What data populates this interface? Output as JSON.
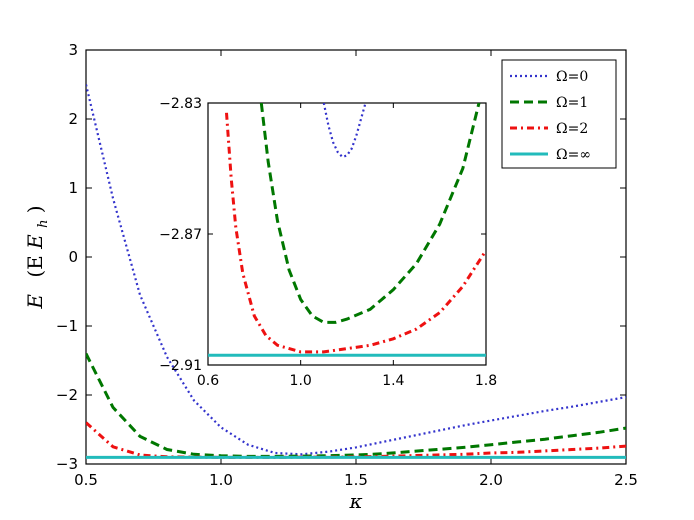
{
  "chart_data": {
    "type": "line",
    "main": {
      "xlabel": "κ",
      "ylabel_main": "E",
      "ylabel_unit": "(E",
      "ylabel_sub": "h",
      "ylabel_close": ")",
      "xlim": [
        0.5,
        2.5
      ],
      "ylim": [
        -3.0,
        3.0
      ],
      "xticks": [
        0.5,
        1.0,
        1.5,
        2.0,
        2.5
      ],
      "xtick_labels": [
        "0.5",
        "1.0",
        "1.5",
        "2.0",
        "2.5"
      ],
      "yticks": [
        -3,
        -2,
        -1,
        0,
        1,
        2,
        3
      ],
      "ytick_labels": [
        "−3",
        "−2",
        "−1",
        "0",
        "1",
        "2",
        "3"
      ],
      "x": [
        0.5,
        0.6,
        0.7,
        0.8,
        0.9,
        1.0,
        1.1,
        1.2,
        1.3,
        1.4,
        1.5,
        1.6,
        1.7,
        1.8,
        1.9,
        2.0,
        2.1,
        2.2,
        2.3,
        2.4,
        2.5
      ],
      "series": [
        {
          "name": "Ω=0",
          "color": "#3333cc",
          "style": "dotted",
          "values": [
            2.5,
            0.85,
            -0.55,
            -1.45,
            -2.08,
            -2.47,
            -2.72,
            -2.84,
            -2.86,
            -2.82,
            -2.76,
            -2.68,
            -2.6,
            -2.52,
            -2.44,
            -2.37,
            -2.3,
            -2.23,
            -2.17,
            -2.1,
            -2.03
          ]
        },
        {
          "name": "Ω=1",
          "color": "#007700",
          "style": "dashed",
          "values": [
            -1.4,
            -2.18,
            -2.6,
            -2.79,
            -2.86,
            -2.88,
            -2.89,
            -2.89,
            -2.885,
            -2.88,
            -2.87,
            -2.85,
            -2.82,
            -2.79,
            -2.76,
            -2.72,
            -2.68,
            -2.64,
            -2.59,
            -2.54,
            -2.48
          ]
        },
        {
          "name": "Ω=2",
          "color": "#ee1111",
          "style": "dashdot",
          "values": [
            -2.4,
            -2.75,
            -2.87,
            -2.895,
            -2.9,
            -2.905,
            -2.905,
            -2.905,
            -2.9,
            -2.9,
            -2.895,
            -2.89,
            -2.88,
            -2.87,
            -2.86,
            -2.84,
            -2.83,
            -2.81,
            -2.79,
            -2.77,
            -2.74
          ]
        },
        {
          "name": "Ω=∞",
          "color": "#22bbbb",
          "style": "solid",
          "values": [
            -2.905,
            -2.905,
            -2.905,
            -2.905,
            -2.905,
            -2.905,
            -2.905,
            -2.905,
            -2.905,
            -2.905,
            -2.905,
            -2.905,
            -2.905,
            -2.905,
            -2.905,
            -2.905,
            -2.905,
            -2.905,
            -2.905,
            -2.905,
            -2.905
          ]
        }
      ]
    },
    "inset": {
      "xlim": [
        0.6,
        1.8
      ],
      "ylim": [
        -2.91,
        -2.83
      ],
      "xticks": [
        0.6,
        1.0,
        1.4,
        1.8
      ],
      "xtick_labels": [
        "0.6",
        "1.0",
        "1.4",
        "1.8"
      ],
      "yticks": [
        -2.91,
        -2.87,
        -2.83
      ],
      "ytick_labels": [
        "−2.91",
        "−2.87",
        "−2.83"
      ],
      "series": [
        {
          "name": "Ω=0",
          "color": "#3333cc",
          "style": "dotted",
          "x": [
            1.1,
            1.12,
            1.14,
            1.16,
            1.18,
            1.2,
            1.22,
            1.24,
            1.26,
            1.28
          ],
          "values": [
            -2.83,
            -2.837,
            -2.842,
            -2.845,
            -2.8465,
            -2.846,
            -2.844,
            -2.84,
            -2.835,
            -2.83
          ]
        },
        {
          "name": "Ω=1",
          "color": "#007700",
          "style": "dashed",
          "x": [
            0.83,
            0.86,
            0.9,
            0.95,
            1.0,
            1.05,
            1.1,
            1.15,
            1.2,
            1.3,
            1.4,
            1.5,
            1.6,
            1.7,
            1.77
          ],
          "values": [
            -2.83,
            -2.848,
            -2.866,
            -2.881,
            -2.89,
            -2.895,
            -2.897,
            -2.897,
            -2.896,
            -2.893,
            -2.887,
            -2.879,
            -2.867,
            -2.85,
            -2.83
          ]
        },
        {
          "name": "Ω=2",
          "color": "#ee1111",
          "style": "dashdot",
          "x": [
            0.68,
            0.7,
            0.72,
            0.75,
            0.8,
            0.85,
            0.9,
            0.95,
            1.0,
            1.1,
            1.2,
            1.3,
            1.4,
            1.5,
            1.6,
            1.7,
            1.8
          ],
          "values": [
            -2.833,
            -2.853,
            -2.868,
            -2.882,
            -2.895,
            -2.901,
            -2.904,
            -2.905,
            -2.906,
            -2.906,
            -2.905,
            -2.904,
            -2.902,
            -2.899,
            -2.894,
            -2.886,
            -2.875
          ]
        },
        {
          "name": "Ω=∞",
          "color": "#22bbbb",
          "style": "solid",
          "x": [
            0.6,
            1.8
          ],
          "values": [
            -2.907,
            -2.907
          ]
        }
      ]
    },
    "legend": {
      "placement": "top-right",
      "entries": [
        "Ω=0",
        "Ω=1",
        "Ω=2",
        "Ω=∞"
      ]
    }
  }
}
